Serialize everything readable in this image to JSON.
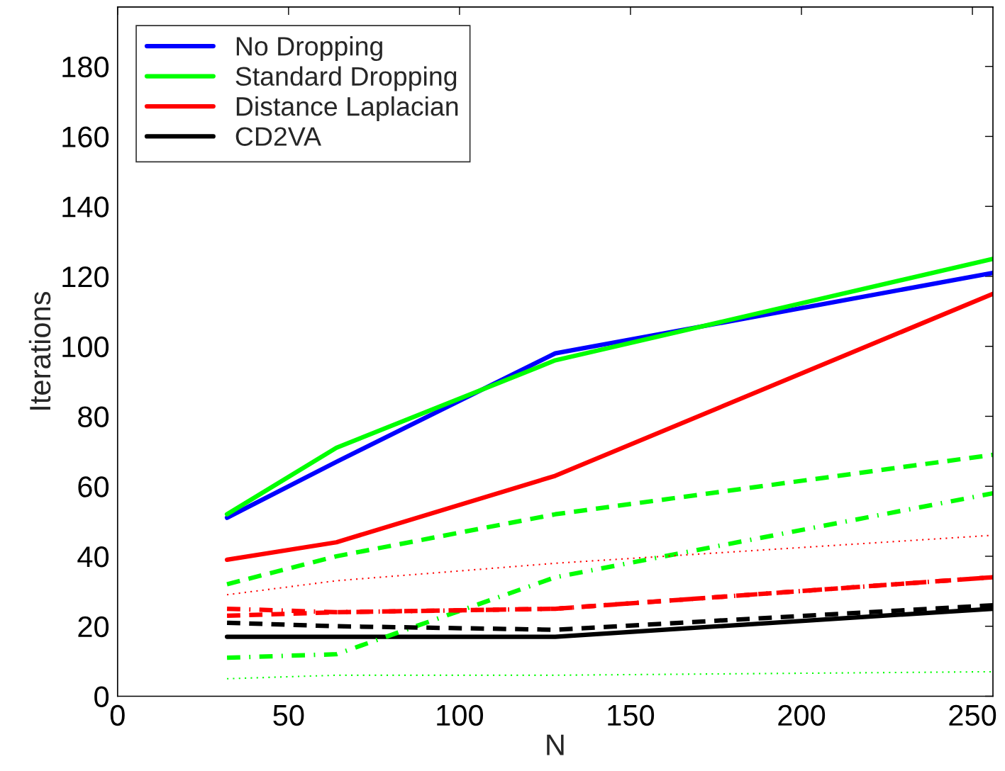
{
  "chart_data": {
    "type": "line",
    "xlabel": "N",
    "ylabel": "Iterations",
    "x": [
      32,
      64,
      128,
      256
    ],
    "xlim": [
      0,
      256
    ],
    "ylim": [
      0,
      197
    ],
    "xticks": [
      0,
      50,
      100,
      150,
      200,
      250
    ],
    "yticks": [
      0,
      20,
      40,
      60,
      80,
      100,
      120,
      140,
      160,
      180
    ],
    "grid": false,
    "legend": "top left",
    "marker": "none",
    "series": [
      {
        "name": "No Dropping",
        "color": "#0000ff",
        "line_style": "solid",
        "values": [
          51,
          67,
          98,
          121
        ]
      },
      {
        "name": "Standard Dropping",
        "color": "#00ff00",
        "line_style": "solid",
        "values": [
          52,
          71,
          96,
          125
        ]
      },
      {
        "name": "Distance Laplacian",
        "color": "#ff0000",
        "line_style": "solid",
        "values": [
          39,
          44,
          63,
          115
        ]
      },
      {
        "name": "CD2VA",
        "color": "#000000",
        "line_style": "solid",
        "values": [
          17,
          17,
          17,
          25
        ]
      },
      {
        "color": "#00ff00",
        "line_style": "dashed",
        "values": [
          32,
          40,
          52,
          69
        ]
      },
      {
        "color": "#00ff00",
        "line_style": "dashdot",
        "values": [
          11,
          12,
          34,
          58
        ]
      },
      {
        "color": "#00ff00",
        "line_style": "dotted",
        "values": [
          5,
          6,
          6,
          7
        ]
      },
      {
        "color": "#ff0000",
        "line_style": "dotted",
        "values": [
          29,
          33,
          38,
          46
        ]
      },
      {
        "color": "#ff0000",
        "line_style": "dashdot",
        "values": [
          25,
          24,
          25,
          34
        ]
      },
      {
        "color": "#ff0000",
        "line_style": "dashed",
        "values": [
          23,
          24,
          25,
          34
        ]
      },
      {
        "color": "#000000",
        "line_style": "dashed",
        "values": [
          21,
          20,
          19,
          26
        ]
      }
    ]
  }
}
